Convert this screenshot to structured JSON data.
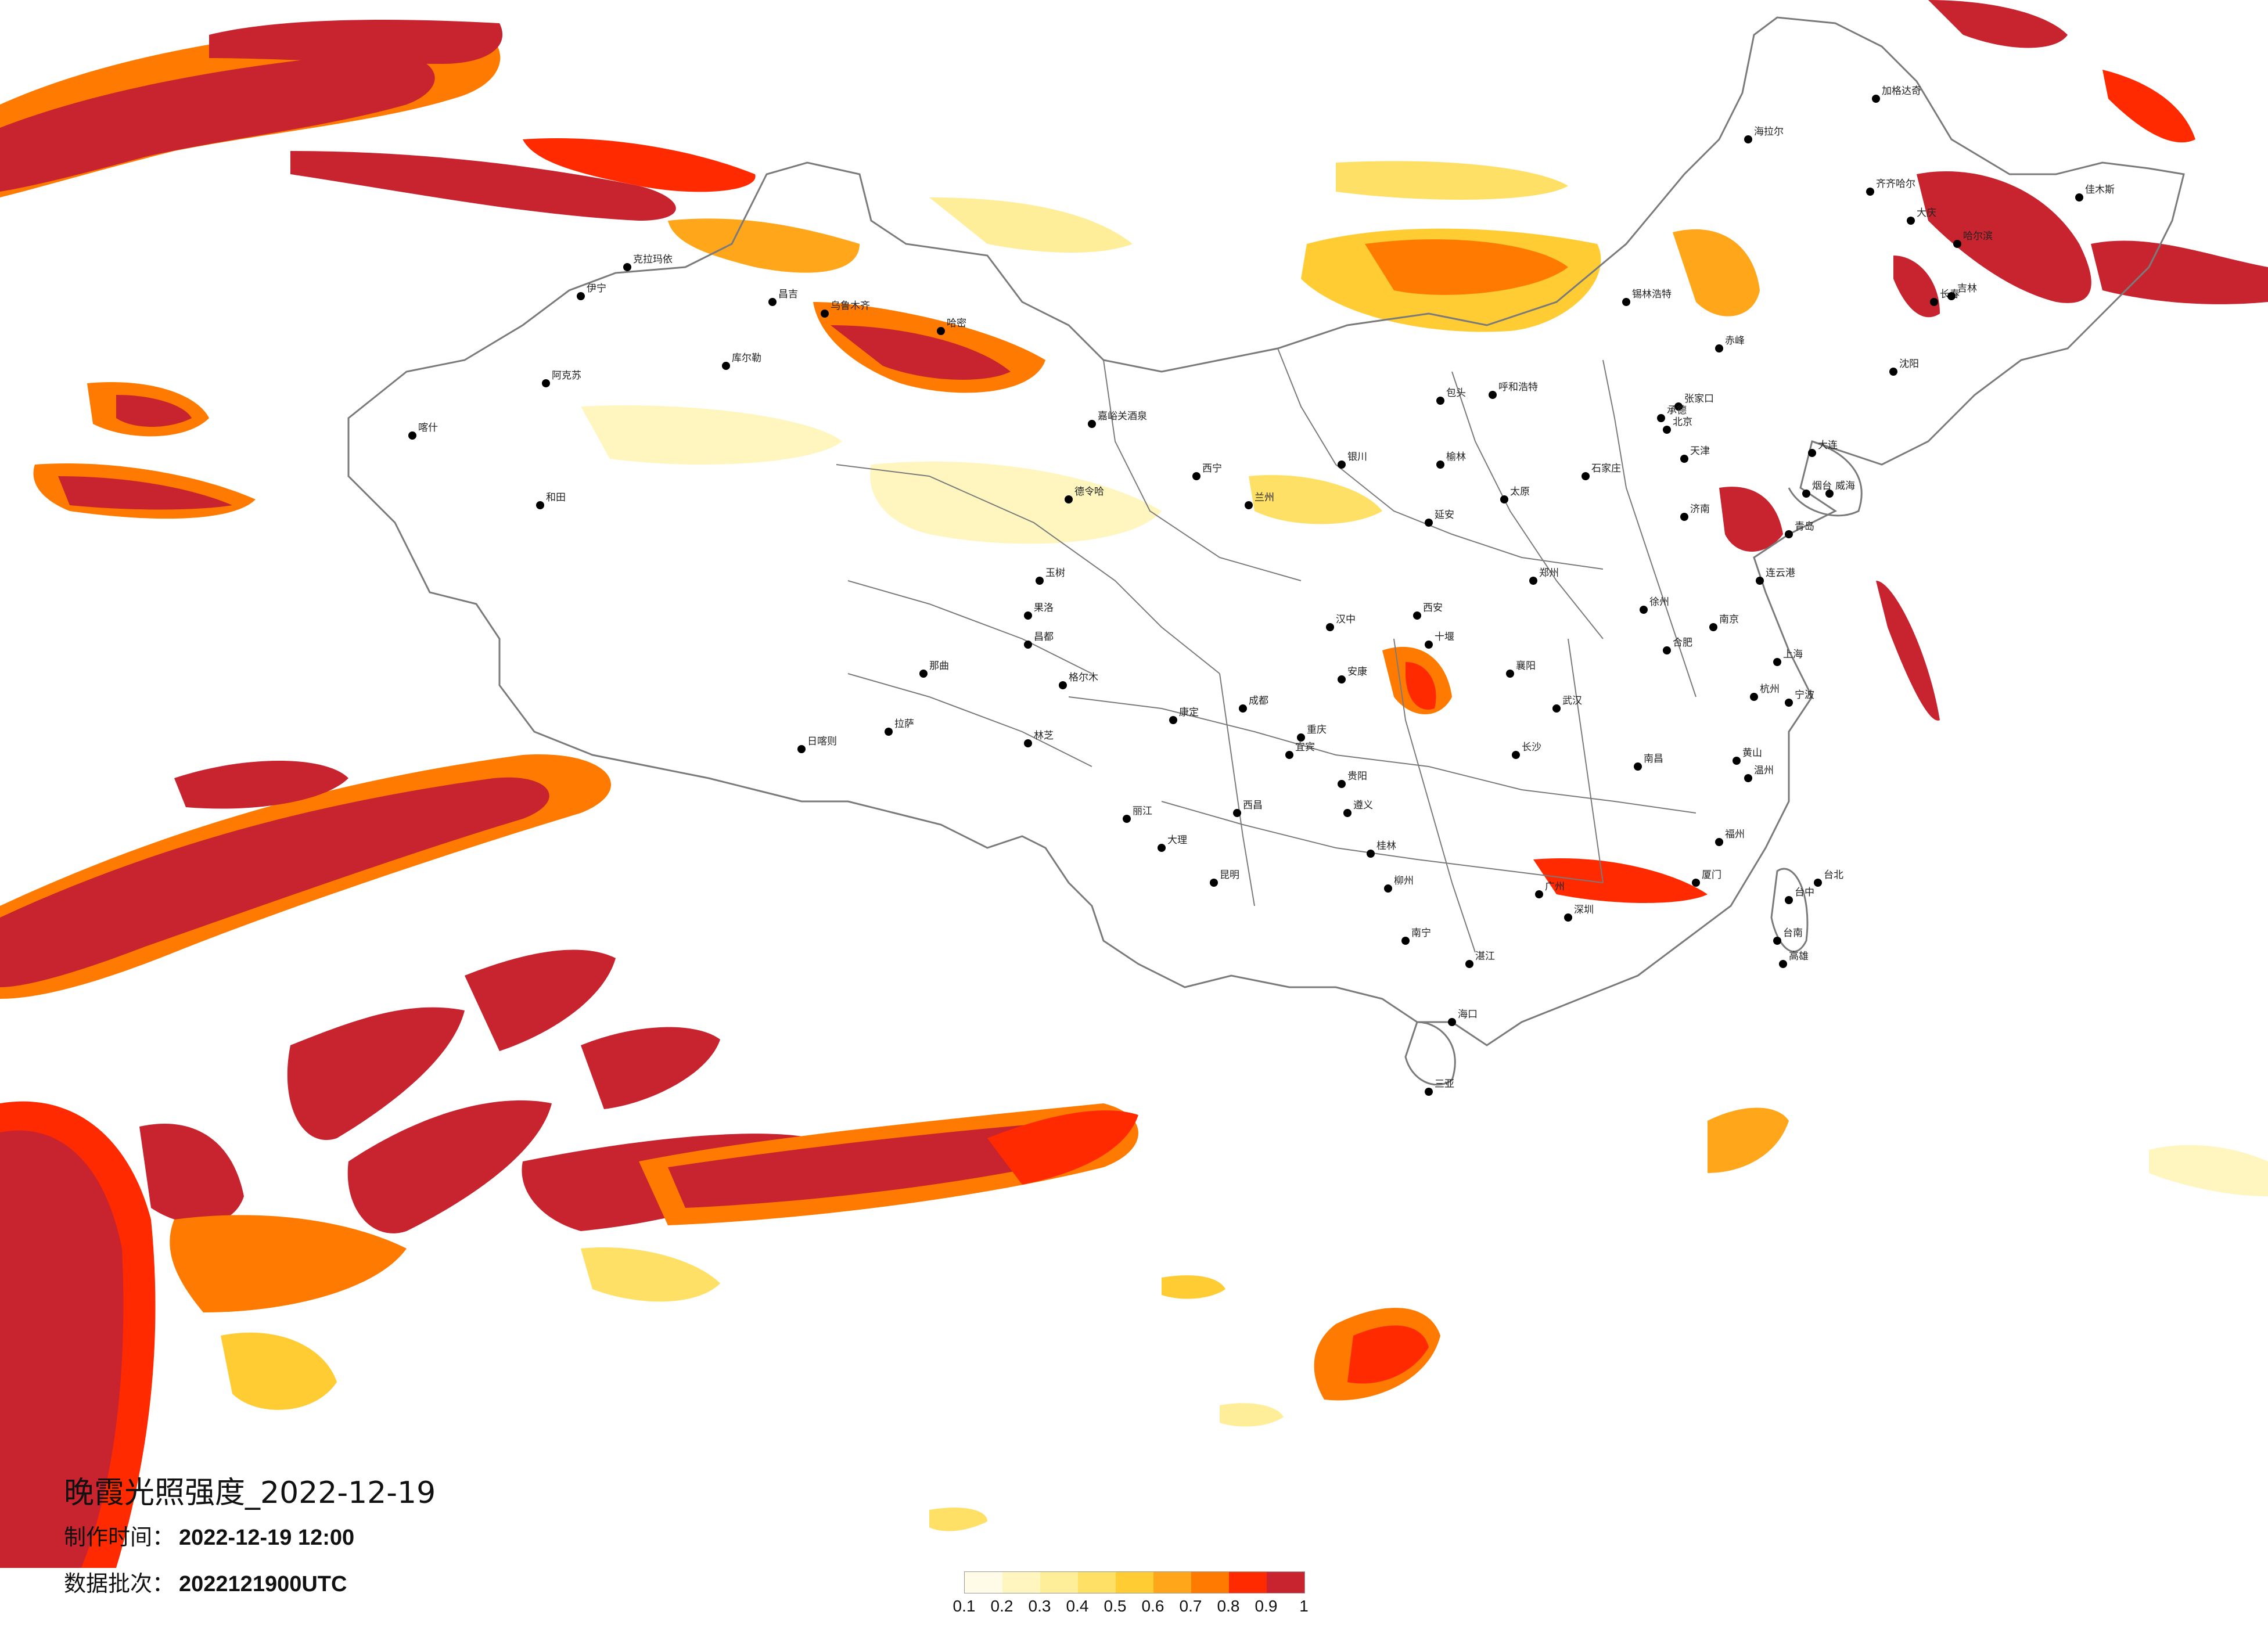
{
  "title": "晚霞光照强度_2022-12-19",
  "production_time": {
    "label": "制作时间：",
    "value": "2022-12-19 12:00"
  },
  "data_batch": {
    "label": "数据批次：",
    "value": "2022121900UTC"
  },
  "legend": {
    "ticks": [
      "0.1",
      "0.2",
      "0.3",
      "0.4",
      "0.5",
      "0.6",
      "0.7",
      "0.8",
      "0.9",
      "1"
    ],
    "colors": [
      "#fffbe6",
      "#fff6bf",
      "#ffee99",
      "#ffe066",
      "#ffcc33",
      "#ffa61a",
      "#ff7a00",
      "#ff2a00",
      "#c8242f"
    ]
  },
  "cities": [
    {
      "name": "伊宁"
    },
    {
      "name": "阿克苏"
    },
    {
      "name": "库尔勒"
    },
    {
      "name": "和田"
    },
    {
      "name": "喀什"
    },
    {
      "name": "克拉玛依"
    },
    {
      "name": "昌吉"
    },
    {
      "name": "乌鲁木齐"
    },
    {
      "name": "哈密"
    },
    {
      "name": "嘉峪关酒泉"
    },
    {
      "name": "德令哈"
    },
    {
      "name": "格尔木"
    },
    {
      "name": "西宁"
    },
    {
      "name": "兰州"
    },
    {
      "name": "银川"
    },
    {
      "name": "呼和浩特"
    },
    {
      "name": "包头"
    },
    {
      "name": "锡林浩特"
    },
    {
      "name": "海拉尔"
    },
    {
      "name": "加格达奇"
    },
    {
      "name": "齐齐哈尔"
    },
    {
      "name": "大庆"
    },
    {
      "name": "哈尔滨"
    },
    {
      "name": "佳木斯"
    },
    {
      "name": "长春"
    },
    {
      "name": "吉林"
    },
    {
      "name": "沈阳"
    },
    {
      "name": "大连"
    },
    {
      "name": "赤峰"
    },
    {
      "name": "北京"
    },
    {
      "name": "天津"
    },
    {
      "name": "石家庄"
    },
    {
      "name": "太原"
    },
    {
      "name": "济南"
    },
    {
      "name": "青岛"
    },
    {
      "name": "烟台"
    },
    {
      "name": "威海"
    },
    {
      "name": "郑州"
    },
    {
      "name": "西安"
    },
    {
      "name": "延安"
    },
    {
      "name": "榆林"
    },
    {
      "name": "汉中"
    },
    {
      "name": "安康"
    },
    {
      "name": "十堰"
    },
    {
      "name": "襄阳"
    },
    {
      "name": "武汉"
    },
    {
      "name": "合肥"
    },
    {
      "name": "南京"
    },
    {
      "name": "上海"
    },
    {
      "name": "杭州"
    },
    {
      "name": "宁波"
    },
    {
      "name": "温州"
    },
    {
      "name": "福州"
    },
    {
      "name": "厦门"
    },
    {
      "name": "南昌"
    },
    {
      "name": "长沙"
    },
    {
      "name": "贵阳"
    },
    {
      "name": "重庆"
    },
    {
      "name": "成都"
    },
    {
      "name": "昆明"
    },
    {
      "name": "大理"
    },
    {
      "name": "丽江"
    },
    {
      "name": "南宁"
    },
    {
      "name": "桂林"
    },
    {
      "name": "柳州"
    },
    {
      "name": "广州"
    },
    {
      "name": "深圳"
    },
    {
      "name": "湛江"
    },
    {
      "name": "海口"
    },
    {
      "name": "三亚"
    },
    {
      "name": "台北"
    },
    {
      "name": "台中"
    },
    {
      "name": "台南"
    },
    {
      "name": "高雄"
    },
    {
      "name": "拉萨"
    },
    {
      "name": "日喀则"
    },
    {
      "name": "林芝"
    },
    {
      "name": "那曲"
    },
    {
      "name": "昌都"
    },
    {
      "name": "玉树"
    },
    {
      "name": "果洛"
    },
    {
      "name": "康定"
    },
    {
      "name": "西昌"
    },
    {
      "name": "遵义"
    },
    {
      "name": "宜宾"
    },
    {
      "name": "黄山"
    },
    {
      "name": "连云港"
    },
    {
      "name": "徐州"
    },
    {
      "name": "张家口"
    },
    {
      "name": "承德"
    }
  ]
}
